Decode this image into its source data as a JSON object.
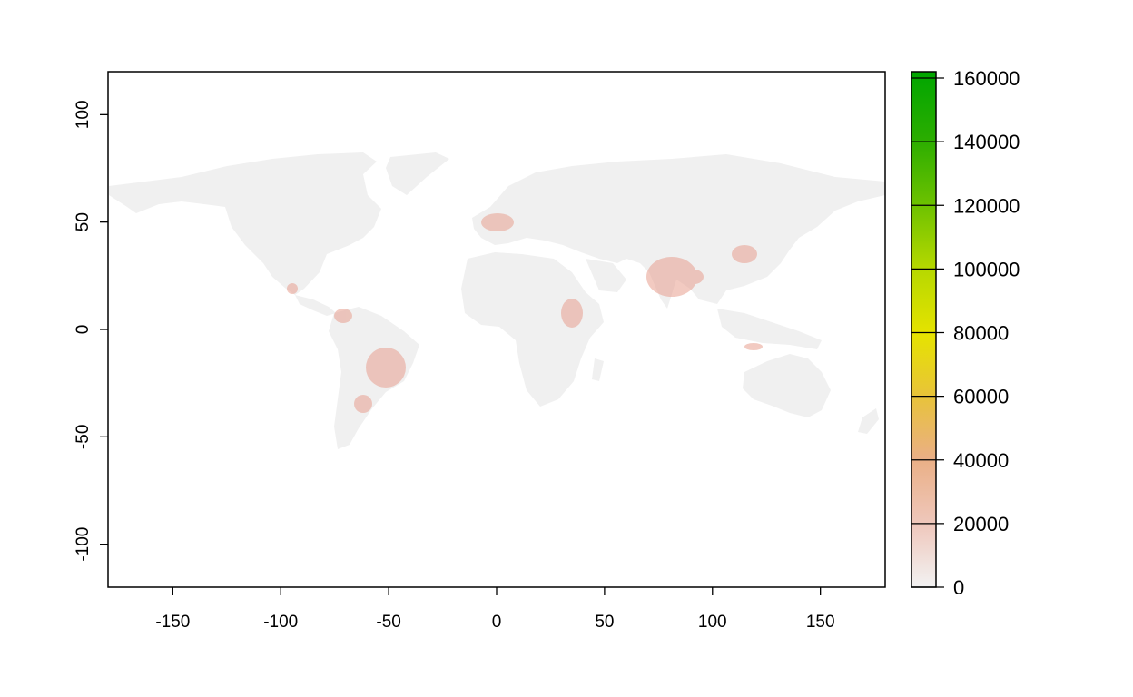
{
  "map": {
    "type": "raster",
    "x_axis": {
      "range": [
        -180,
        180
      ],
      "ticks": [
        -150,
        -100,
        -50,
        0,
        50,
        100,
        150
      ],
      "tick_labels": [
        "-150",
        "-100",
        "-50",
        "0",
        "50",
        "100",
        "150"
      ]
    },
    "y_axis": {
      "range": [
        -120,
        120
      ],
      "ticks": [
        100,
        50,
        0,
        -50,
        -100
      ],
      "tick_labels": [
        "100",
        "50",
        "0",
        "-50",
        "-100"
      ]
    },
    "land_color": "#f0f0f0",
    "hotspot_color": "#e8a090"
  },
  "legend": {
    "range": [
      0,
      162000
    ],
    "ticks": [
      0,
      20000,
      40000,
      60000,
      80000,
      100000,
      120000,
      140000,
      160000
    ],
    "tick_labels": [
      "0",
      "20000",
      "40000",
      "60000",
      "80000",
      "100000",
      "120000",
      "140000",
      "160000"
    ],
    "colors": [
      "#f2f2f2",
      "#efc8bd",
      "#eaaf85",
      "#e8c33a",
      "#e6e300",
      "#b5d800",
      "#6ec200",
      "#2aad00",
      "#00a600"
    ]
  }
}
